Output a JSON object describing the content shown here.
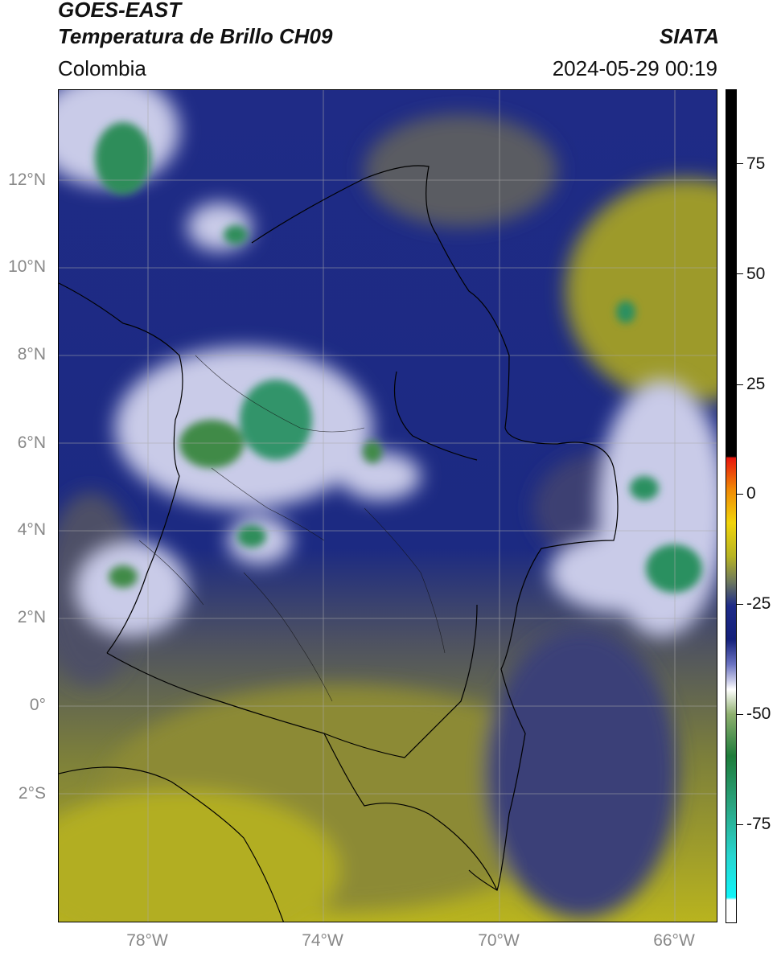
{
  "header": {
    "title_line1": "GOES-EAST",
    "title_line2": "Temperatura de Brillo CH09",
    "region": "Colombia",
    "org": "SIATA",
    "datetime": "2024-05-29 00:19"
  },
  "axes": {
    "y_labels": [
      "12°N",
      "10°N",
      "8°N",
      "6°N",
      "4°N",
      "2°N",
      "0°",
      "2°S"
    ],
    "x_labels": [
      "78°W",
      "74°W",
      "70°W",
      "66°W"
    ]
  },
  "colorbar": {
    "labels": [
      "75",
      "50",
      "25",
      "0",
      "-25",
      "-50",
      "-75"
    ],
    "colors": {
      "black": "#000000",
      "red": "#e8160d",
      "orange": "#f08a06",
      "yellow": "#f1d40b",
      "olive": "#b7b423",
      "navy": "#14207a",
      "white": "#ffffff",
      "green": "#1e7c3a",
      "teal": "#2aa581",
      "cyan": "#0ff4f8"
    }
  }
}
